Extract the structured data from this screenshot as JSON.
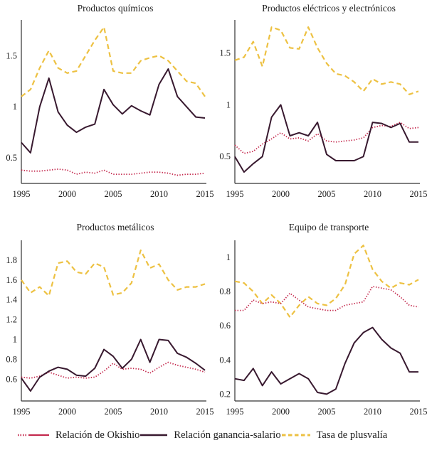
{
  "colors": {
    "okishio": "#c42a4e",
    "ganancia": "#38192f",
    "plusvalia": "#edc142",
    "axis": "#333333",
    "text": "#1c1c1c"
  },
  "legend": {
    "items": [
      {
        "key": "okishio",
        "label": "Relación de Okishio",
        "marker": "dotted-solid-line"
      },
      {
        "key": "ganancia",
        "label": "Relación ganancia-salario",
        "marker": "solid-line"
      },
      {
        "key": "plusvalia",
        "label": "Tasa de plusvalía",
        "marker": "dashed-line"
      }
    ]
  },
  "years": [
    1995,
    1996,
    1997,
    1998,
    1999,
    2000,
    2001,
    2002,
    2003,
    2004,
    2005,
    2006,
    2007,
    2008,
    2009,
    2010,
    2011,
    2012,
    2013,
    2014,
    2015
  ],
  "x_ticks": [
    1995,
    2000,
    2005,
    2010,
    2015
  ],
  "chart_data": [
    {
      "type": "line",
      "title": "Productos químicos",
      "xlabel": "",
      "ylabel": "",
      "xlim": [
        1995,
        2015
      ],
      "ylim": [
        0.25,
        1.85
      ],
      "yticks": [
        0.5,
        1,
        1.5
      ],
      "grid": false,
      "series": [
        {
          "name": "Relación de Okishio",
          "key": "okishio",
          "style": "dotted",
          "values": [
            0.38,
            0.37,
            0.37,
            0.38,
            0.39,
            0.38,
            0.34,
            0.36,
            0.35,
            0.38,
            0.34,
            0.34,
            0.34,
            0.35,
            0.36,
            0.36,
            0.35,
            0.33,
            0.34,
            0.34,
            0.35
          ]
        },
        {
          "name": "Relación ganancia-salario",
          "key": "ganancia",
          "style": "solid",
          "values": [
            0.65,
            0.55,
            1.0,
            1.28,
            0.95,
            0.82,
            0.75,
            0.8,
            0.83,
            1.17,
            1.02,
            0.93,
            1.01,
            0.96,
            0.92,
            1.22,
            1.37,
            1.1,
            1.0,
            0.9,
            0.89
          ]
        },
        {
          "name": "Tasa de plusvalía",
          "key": "plusvalia",
          "style": "dashed",
          "values": [
            1.1,
            1.17,
            1.38,
            1.55,
            1.38,
            1.33,
            1.35,
            1.5,
            1.65,
            1.78,
            1.35,
            1.33,
            1.33,
            1.45,
            1.48,
            1.5,
            1.45,
            1.35,
            1.25,
            1.23,
            1.1
          ]
        }
      ]
    },
    {
      "type": "line",
      "title": "Productos eléctricos y electrónicos",
      "xlabel": "",
      "ylabel": "",
      "xlim": [
        1995,
        2015
      ],
      "ylim": [
        0.24,
        1.82
      ],
      "yticks": [
        0.5,
        1,
        1.5
      ],
      "grid": false,
      "series": [
        {
          "name": "Relación de Okishio",
          "key": "okishio",
          "style": "dotted",
          "values": [
            0.61,
            0.53,
            0.55,
            0.62,
            0.67,
            0.73,
            0.67,
            0.68,
            0.65,
            0.72,
            0.65,
            0.64,
            0.65,
            0.66,
            0.68,
            0.78,
            0.8,
            0.79,
            0.83,
            0.77,
            0.78
          ]
        },
        {
          "name": "Relación ganancia-salario",
          "key": "ganancia",
          "style": "solid",
          "values": [
            0.5,
            0.35,
            0.43,
            0.5,
            0.88,
            1.0,
            0.7,
            0.73,
            0.7,
            0.83,
            0.52,
            0.46,
            0.46,
            0.46,
            0.5,
            0.83,
            0.82,
            0.78,
            0.82,
            0.64,
            0.64
          ]
        },
        {
          "name": "Tasa de plusvalía",
          "key": "plusvalia",
          "style": "dashed",
          "values": [
            1.43,
            1.46,
            1.61,
            1.37,
            1.75,
            1.72,
            1.55,
            1.54,
            1.75,
            1.55,
            1.4,
            1.3,
            1.28,
            1.22,
            1.13,
            1.25,
            1.2,
            1.22,
            1.2,
            1.1,
            1.13
          ]
        }
      ]
    },
    {
      "type": "line",
      "title": "Productos metálicos",
      "xlabel": "",
      "ylabel": "",
      "xlim": [
        1995,
        2015
      ],
      "ylim": [
        0.38,
        2.0
      ],
      "yticks": [
        0.6,
        0.8,
        1,
        1.2,
        1.4,
        1.6,
        1.8
      ],
      "grid": false,
      "series": [
        {
          "name": "Relación de Okishio",
          "key": "okishio",
          "style": "dotted",
          "values": [
            0.62,
            0.61,
            0.63,
            0.67,
            0.64,
            0.61,
            0.62,
            0.61,
            0.62,
            0.68,
            0.76,
            0.7,
            0.71,
            0.7,
            0.66,
            0.72,
            0.77,
            0.74,
            0.72,
            0.7,
            0.67
          ]
        },
        {
          "name": "Relación ganancia-salario",
          "key": "ganancia",
          "style": "solid",
          "values": [
            0.61,
            0.48,
            0.62,
            0.68,
            0.72,
            0.7,
            0.64,
            0.63,
            0.71,
            0.9,
            0.83,
            0.71,
            0.8,
            1.0,
            0.77,
            1.0,
            0.99,
            0.86,
            0.82,
            0.76,
            0.69
          ]
        },
        {
          "name": "Tasa de plusvalía",
          "key": "plusvalia",
          "style": "dashed",
          "values": [
            1.6,
            1.47,
            1.53,
            1.44,
            1.77,
            1.79,
            1.68,
            1.66,
            1.77,
            1.73,
            1.45,
            1.47,
            1.57,
            1.9,
            1.72,
            1.76,
            1.6,
            1.5,
            1.53,
            1.53,
            1.56
          ]
        }
      ]
    },
    {
      "type": "line",
      "title": "Equipo de transporte",
      "xlabel": "",
      "ylabel": "",
      "xlim": [
        1995,
        2015
      ],
      "ylim": [
        0.16,
        1.1
      ],
      "yticks": [
        0.2,
        0.4,
        0.6,
        0.8,
        1
      ],
      "grid": false,
      "series": [
        {
          "name": "Relación de Okishio",
          "key": "okishio",
          "style": "dotted",
          "values": [
            0.69,
            0.69,
            0.75,
            0.73,
            0.74,
            0.73,
            0.79,
            0.75,
            0.71,
            0.7,
            0.69,
            0.69,
            0.72,
            0.73,
            0.74,
            0.83,
            0.82,
            0.81,
            0.77,
            0.72,
            0.71
          ]
        },
        {
          "name": "Relación ganancia-salario",
          "key": "ganancia",
          "style": "solid",
          "values": [
            0.29,
            0.28,
            0.35,
            0.25,
            0.33,
            0.26,
            0.29,
            0.32,
            0.29,
            0.21,
            0.2,
            0.23,
            0.38,
            0.5,
            0.56,
            0.59,
            0.52,
            0.47,
            0.44,
            0.33,
            0.33
          ]
        },
        {
          "name": "Tasa de plusvalía",
          "key": "plusvalia",
          "style": "dashed",
          "values": [
            0.86,
            0.85,
            0.8,
            0.73,
            0.78,
            0.73,
            0.65,
            0.72,
            0.77,
            0.73,
            0.72,
            0.76,
            0.84,
            1.02,
            1.07,
            0.93,
            0.86,
            0.82,
            0.85,
            0.84,
            0.87
          ]
        }
      ]
    }
  ]
}
